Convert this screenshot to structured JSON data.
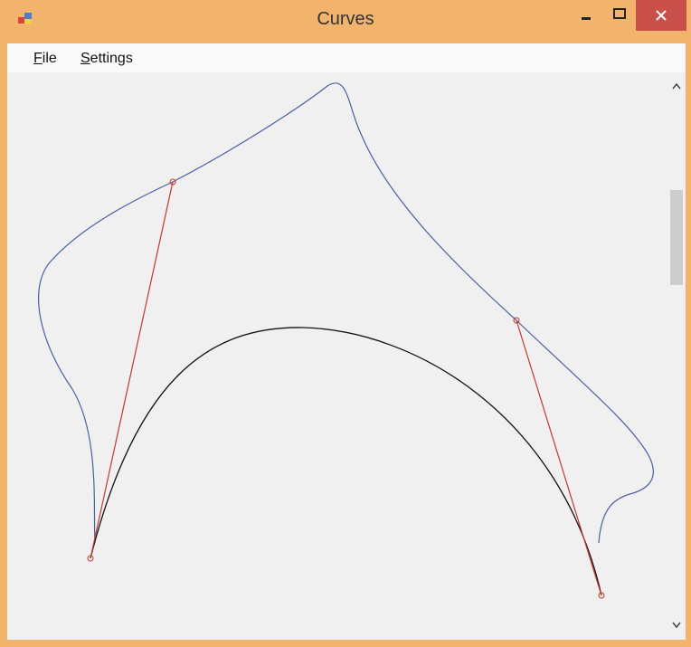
{
  "window": {
    "title": "Curves"
  },
  "menu": {
    "items": [
      "File",
      "Settings"
    ]
  }
}
